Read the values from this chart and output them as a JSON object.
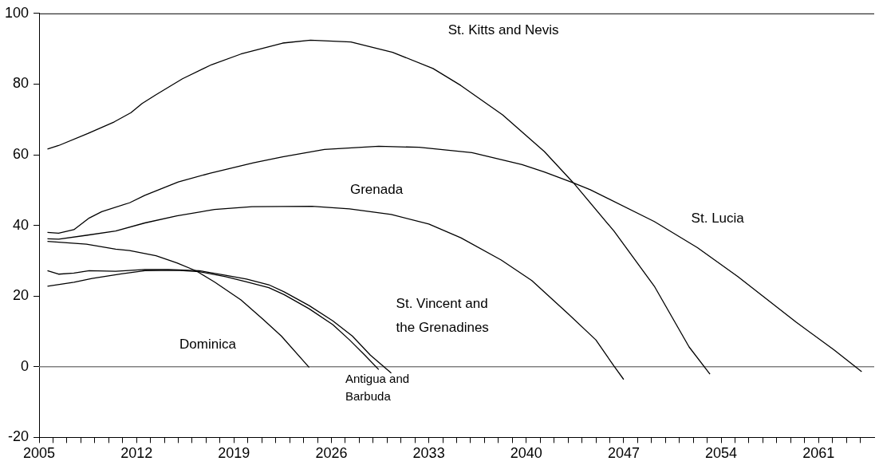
{
  "chart_data": {
    "type": "line",
    "marker": "none",
    "line_style": "solid",
    "xlim": [
      2005,
      2065
    ],
    "ylim": [
      -20,
      100
    ],
    "yticks": [
      -20,
      0,
      20,
      40,
      60,
      80,
      100
    ],
    "xticks": [
      2005,
      {
        "value": 2006,
        "label": null
      },
      {
        "value": 2007,
        "label": null
      },
      {
        "value": 2008,
        "label": null
      },
      {
        "value": 2009,
        "label": null
      },
      {
        "value": 2010,
        "label": null
      },
      {
        "value": 2011,
        "label": null
      },
      2012,
      {
        "value": 2013,
        "label": null
      },
      {
        "value": 2014,
        "label": null
      },
      {
        "value": 2015,
        "label": null
      },
      {
        "value": 2016,
        "label": null
      },
      {
        "value": 2017,
        "label": null
      },
      {
        "value": 2018,
        "label": null
      },
      2019,
      {
        "value": 2020,
        "label": null
      },
      {
        "value": 2021,
        "label": null
      },
      {
        "value": 2022,
        "label": null
      },
      {
        "value": 2023,
        "label": null
      },
      {
        "value": 2024,
        "label": null
      },
      {
        "value": 2025,
        "label": null
      },
      2026,
      {
        "value": 2027,
        "label": null
      },
      {
        "value": 2028,
        "label": null
      },
      {
        "value": 2029,
        "label": null
      },
      {
        "value": 2030,
        "label": null
      },
      {
        "value": 2031,
        "label": null
      },
      {
        "value": 2032,
        "label": null
      },
      2033,
      {
        "value": 2034,
        "label": null
      },
      {
        "value": 2035,
        "label": null
      },
      {
        "value": 2036,
        "label": null
      },
      {
        "value": 2037,
        "label": null
      },
      {
        "value": 2038,
        "label": null
      },
      {
        "value": 2039,
        "label": null
      },
      2040,
      {
        "value": 2041,
        "label": null
      },
      {
        "value": 2042,
        "label": null
      },
      {
        "value": 2043,
        "label": null
      },
      {
        "value": 2044,
        "label": null
      },
      {
        "value": 2045,
        "label": null
      },
      {
        "value": 2046,
        "label": null
      },
      2047,
      {
        "value": 2048,
        "label": null
      },
      {
        "value": 2049,
        "label": null
      },
      {
        "value": 2050,
        "label": null
      },
      {
        "value": 2051,
        "label": null
      },
      {
        "value": 2052,
        "label": null
      },
      {
        "value": 2053,
        "label": null
      },
      2054,
      {
        "value": 2055,
        "label": null
      },
      {
        "value": 2056,
        "label": null
      },
      {
        "value": 2057,
        "label": null
      },
      {
        "value": 2058,
        "label": null
      },
      {
        "value": 2059,
        "label": null
      },
      {
        "value": 2060,
        "label": null
      },
      2061,
      {
        "value": 2062,
        "label": null
      },
      {
        "value": 2063,
        "label": null
      },
      {
        "value": 2064,
        "label": null
      }
    ],
    "ref_lines": [
      {
        "axis": "y",
        "value": 0,
        "color": "#808080"
      }
    ],
    "series": [
      {
        "name": "St. Kitts and Nevis",
        "color": "#000000",
        "x": [
          2005.6,
          2006.4,
          2008.5,
          2010.4,
          2011.6,
          2012.4,
          2013.4,
          2015.3,
          2017.4,
          2019.5,
          2022.5,
          2024.5,
          2027.4,
          2030.4,
          2033.3,
          2035.3,
          2038.3,
          2041.3,
          2043.4,
          2046.3,
          2049.2,
          2051.7,
          2053.2
        ],
        "values": [
          61.6,
          62.6,
          66,
          69.3,
          71.9,
          74.5,
          77,
          81.5,
          85.5,
          88.5,
          91.6,
          92.4,
          91.9,
          89,
          84.4,
          79.6,
          71.3,
          60.9,
          52,
          38.4,
          22.8,
          5.6,
          -2.1
        ]
      },
      {
        "name": "St. Lucia",
        "color": "#000000",
        "x": [
          2005.6,
          2006.4,
          2007.5,
          2008.6,
          2009.5,
          2011.5,
          2012.6,
          2015,
          2017.3,
          2020.4,
          2022.5,
          2025.5,
          2029.4,
          2032.3,
          2036.1,
          2039.7,
          2041.3,
          2043.4,
          2044.6,
          2049.2,
          2052.3,
          2055.2,
          2059.4,
          2062.1,
          2064.1
        ],
        "values": [
          38.0,
          37.8,
          38.8,
          42.1,
          43.9,
          46.4,
          48.5,
          52.3,
          54.8,
          57.7,
          59.4,
          61.5,
          62.4,
          62.1,
          60.6,
          57.2,
          55.1,
          52.0,
          50.1,
          41.1,
          33.7,
          25.5,
          12.6,
          4.8,
          -1.4
        ]
      },
      {
        "name": "Grenada",
        "color": "#000000",
        "x": [
          2005.6,
          2006.4,
          2008.4,
          2010.5,
          2012.6,
          2014.9,
          2017.6,
          2020.3,
          2024.6,
          2027.3,
          2030.3,
          2033,
          2035.3,
          2038.2,
          2040.4,
          2043,
          2045,
          2046.3,
          2047
        ],
        "values": [
          36.2,
          36.1,
          37.2,
          38.4,
          40.7,
          42.7,
          44.5,
          45.3,
          45.4,
          44.7,
          43.1,
          40.4,
          36.5,
          30.2,
          24.4,
          15.0,
          7.6,
          0.2,
          -3.6
        ]
      },
      {
        "name": "Dominica",
        "color": "#000000",
        "x": [
          2005.6,
          2008.4,
          2010.5,
          2011.5,
          2013.4,
          2014.9,
          2016.3,
          2017.6,
          2019.5,
          2021.1,
          2022.4,
          2024.4
        ],
        "values": [
          35.5,
          34.7,
          33.3,
          32.9,
          31.4,
          29.4,
          27.1,
          24.0,
          18.9,
          13.4,
          8.7,
          -0.2
        ]
      },
      {
        "name": "St. Vincent and\nthe Grenadines",
        "color": "#000000",
        "x": [
          2005.6,
          2006.4,
          2007.5,
          2008.6,
          2010.5,
          2012.6,
          2014.3,
          2016.5,
          2018.4,
          2019.9,
          2021.5,
          2022.6,
          2024.4,
          2026.1,
          2027.5,
          2028.8,
          2030.3
        ],
        "values": [
          27.2,
          26.2,
          26.5,
          27.2,
          27.0,
          27.5,
          27.5,
          27.2,
          25.9,
          24.8,
          23.2,
          21.2,
          17.3,
          13.0,
          8.7,
          3.3,
          -1.8
        ]
      },
      {
        "name": "Antigua and\nBarbuda",
        "color": "#000000",
        "x": [
          2005.6,
          2007.5,
          2008.8,
          2010.9,
          2012.6,
          2014.9,
          2016.5,
          2018.4,
          2019.9,
          2021.5,
          2022.6,
          2024.4,
          2026.1,
          2027.3,
          2028.4,
          2029.4
        ],
        "values": [
          22.8,
          23.9,
          25.0,
          26.3,
          27.2,
          27.3,
          26.9,
          25.5,
          24.0,
          22.4,
          20.4,
          16.4,
          11.9,
          7.6,
          3.3,
          -0.8
        ]
      }
    ]
  }
}
